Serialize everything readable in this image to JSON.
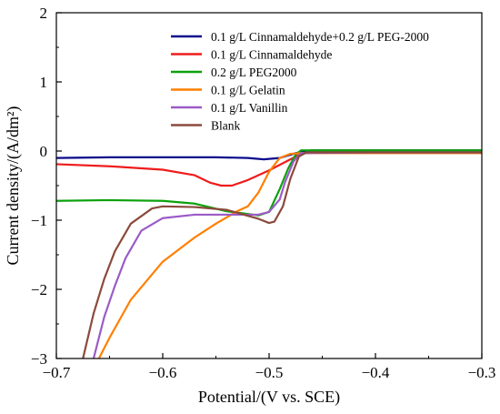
{
  "chart_data": {
    "type": "line",
    "xlabel": "Potential/(V vs. SCE)",
    "ylabel": "Current density/(A/dm²)",
    "xlim": [
      -0.7,
      -0.3
    ],
    "ylim": [
      -3,
      2
    ],
    "xticks": [
      -0.7,
      -0.6,
      -0.5,
      -0.4,
      -0.3
    ],
    "yticks": [
      -3,
      -2,
      -1,
      0,
      1,
      2
    ],
    "grid": false,
    "legend_position": "top-right",
    "series": [
      {
        "name": "0.1 g/L Cinnamaldehyde+0.2 g/L PEG-2000",
        "color": "#0a0a8c",
        "x": [
          -0.7,
          -0.65,
          -0.6,
          -0.55,
          -0.52,
          -0.505,
          -0.49,
          -0.475,
          -0.46,
          -0.4,
          -0.3
        ],
        "y": [
          -0.1,
          -0.09,
          -0.09,
          -0.09,
          -0.1,
          -0.12,
          -0.1,
          -0.03,
          0.01,
          0.01,
          0.01
        ]
      },
      {
        "name": "0.1 g/L Cinnamaldehyde",
        "color": "#ee1c1c",
        "x": [
          -0.7,
          -0.65,
          -0.6,
          -0.57,
          -0.555,
          -0.545,
          -0.535,
          -0.52,
          -0.5,
          -0.48,
          -0.47,
          -0.46,
          -0.4,
          -0.3
        ],
        "y": [
          -0.19,
          -0.22,
          -0.27,
          -0.35,
          -0.46,
          -0.5,
          -0.5,
          -0.42,
          -0.28,
          -0.12,
          -0.04,
          -0.02,
          -0.02,
          -0.02
        ]
      },
      {
        "name": "0.2 g/L PEG2000",
        "color": "#0ca10c",
        "x": [
          -0.7,
          -0.65,
          -0.6,
          -0.57,
          -0.54,
          -0.51,
          -0.5,
          -0.49,
          -0.482,
          -0.475,
          -0.47,
          -0.4,
          -0.3
        ],
        "y": [
          -0.72,
          -0.71,
          -0.72,
          -0.76,
          -0.87,
          -0.93,
          -0.88,
          -0.55,
          -0.25,
          -0.05,
          0.01,
          0.01,
          0.01
        ]
      },
      {
        "name": "0.1 g/L Gelatin",
        "color": "#ff7f00",
        "x": [
          -0.66,
          -0.65,
          -0.63,
          -0.6,
          -0.57,
          -0.55,
          -0.53,
          -0.52,
          -0.51,
          -0.5,
          -0.49,
          -0.48,
          -0.47,
          -0.4,
          -0.3
        ],
        "y": [
          -3.0,
          -2.7,
          -2.15,
          -1.6,
          -1.25,
          -1.05,
          -0.87,
          -0.8,
          -0.6,
          -0.3,
          -0.1,
          -0.04,
          -0.03,
          -0.03,
          -0.03
        ]
      },
      {
        "name": "0.1 g/L Vanillin",
        "color": "#9b5bc8",
        "x": [
          -0.665,
          -0.655,
          -0.645,
          -0.635,
          -0.62,
          -0.6,
          -0.57,
          -0.54,
          -0.51,
          -0.5,
          -0.49,
          -0.485,
          -0.477,
          -0.47,
          -0.4,
          -0.3
        ],
        "y": [
          -3.0,
          -2.4,
          -1.95,
          -1.55,
          -1.15,
          -0.97,
          -0.92,
          -0.92,
          -0.92,
          -0.88,
          -0.7,
          -0.45,
          -0.15,
          -0.03,
          -0.02,
          -0.02
        ]
      },
      {
        "name": "Blank",
        "color": "#8b4a3c",
        "x": [
          -0.675,
          -0.665,
          -0.655,
          -0.645,
          -0.63,
          -0.61,
          -0.6,
          -0.57,
          -0.54,
          -0.51,
          -0.5,
          -0.495,
          -0.487,
          -0.48,
          -0.472,
          -0.465,
          -0.4,
          -0.3
        ],
        "y": [
          -3.0,
          -2.35,
          -1.85,
          -1.45,
          -1.05,
          -0.83,
          -0.8,
          -0.81,
          -0.85,
          -0.98,
          -1.04,
          -1.02,
          -0.8,
          -0.4,
          -0.08,
          -0.02,
          -0.02,
          -0.02
        ]
      }
    ]
  }
}
